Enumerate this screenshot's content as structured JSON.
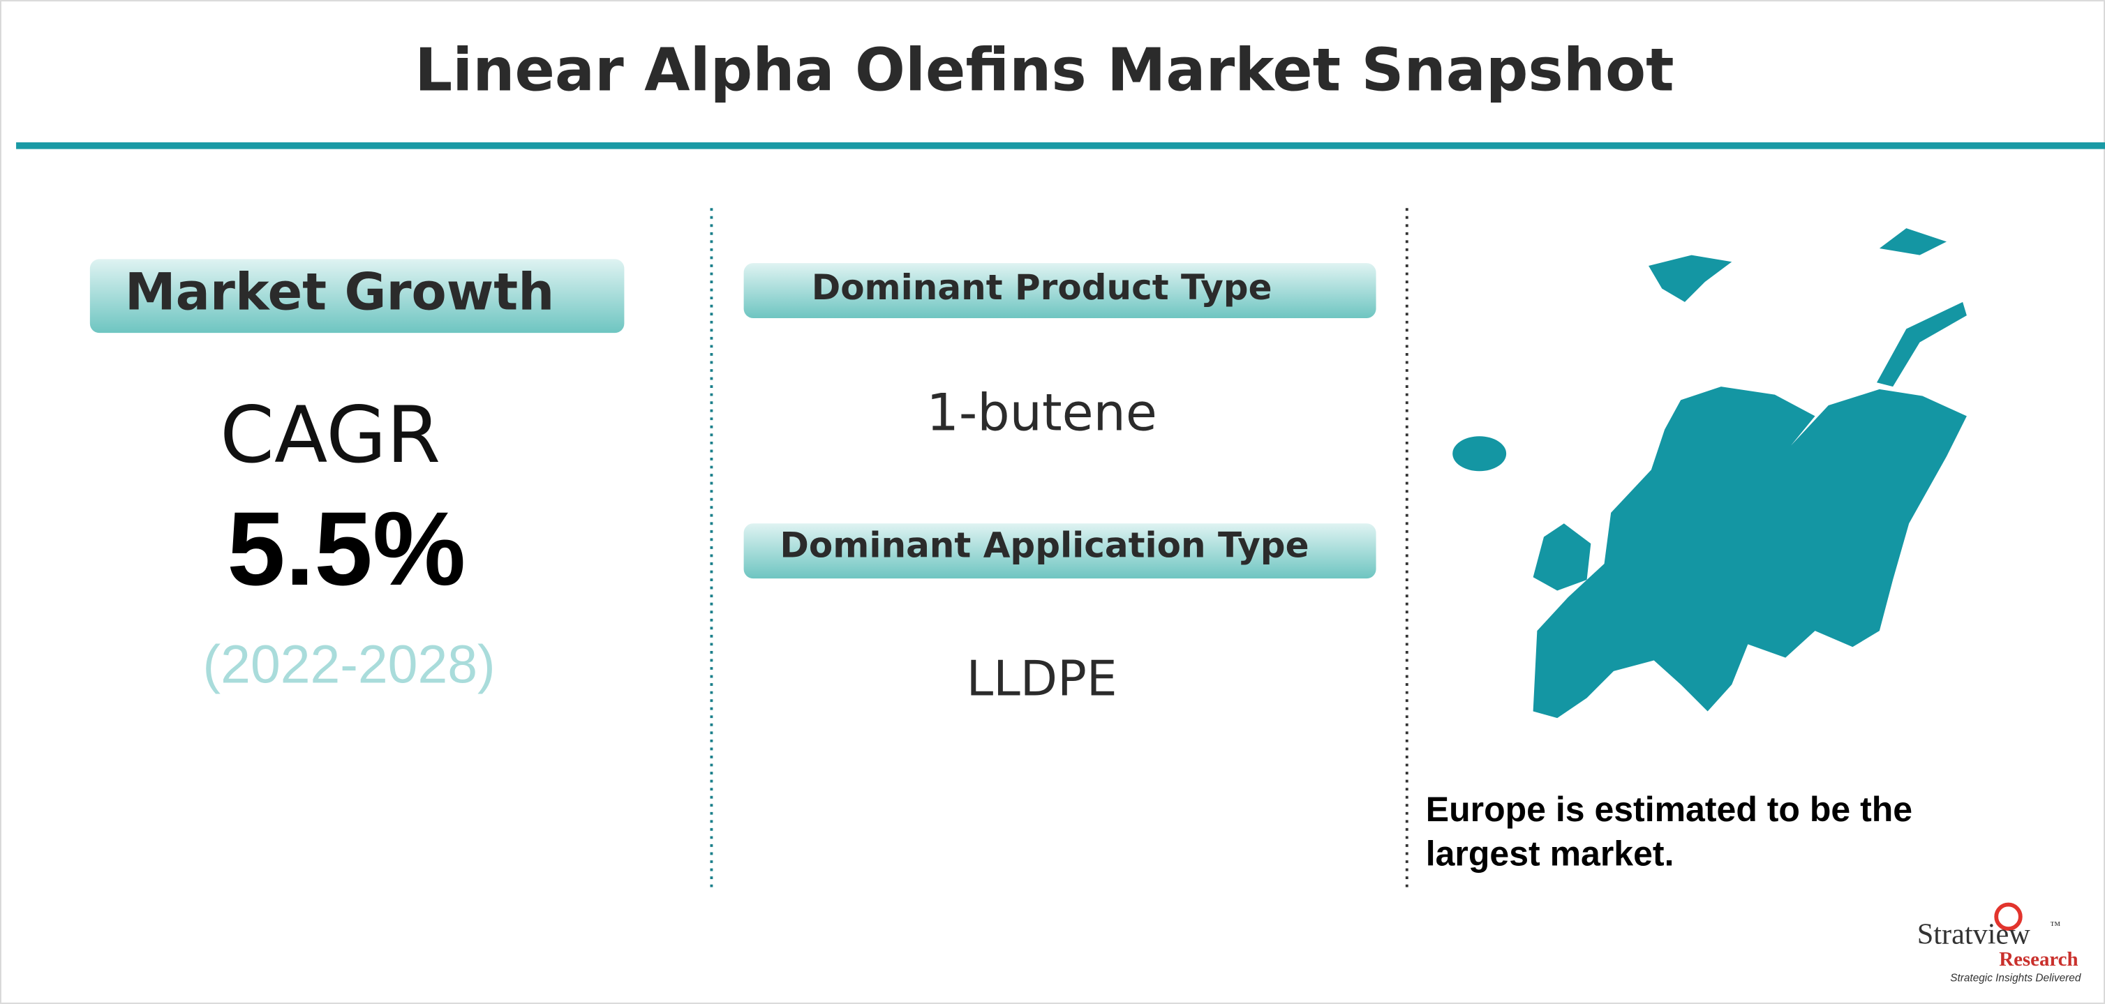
{
  "header": {
    "title": "Linear Alpha Olefins Market Snapshot"
  },
  "growth": {
    "label": "Market Growth",
    "metric": "CAGR",
    "value": "5.5%",
    "period": "(2022-2028)"
  },
  "product": {
    "label": "Dominant Product Type",
    "value": "1-butene"
  },
  "application": {
    "label": "Dominant Application Type",
    "value": "LLDPE"
  },
  "region": {
    "lines": [
      "Europe is estimated to be the",
      "largest market."
    ]
  },
  "logo": {
    "name": "Stratview",
    "mark": "™",
    "sub": "Research",
    "tagline": "Strategic Insights Delivered"
  }
}
